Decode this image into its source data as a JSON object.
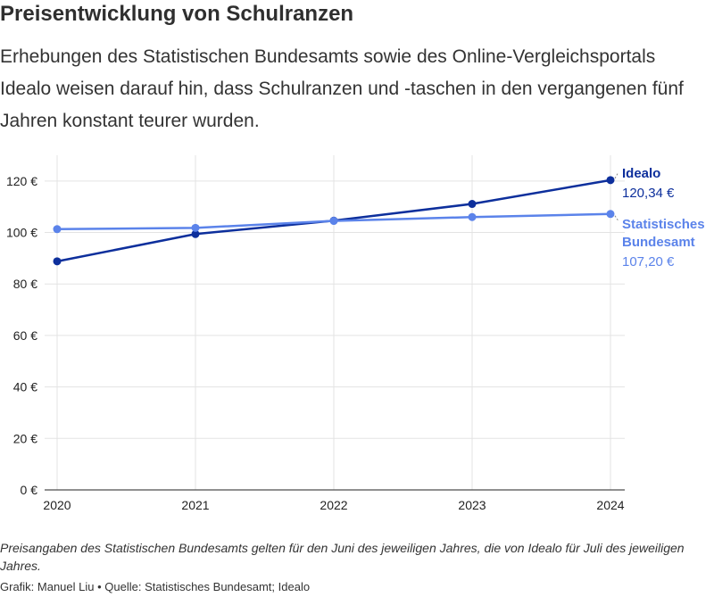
{
  "header": {
    "title": "Preisentwicklung von Schulranzen",
    "subtitle": "Erhebungen des Statistischen Bundesamts sowie des Online-Vergleichsportals Idealo weisen darauf hin, dass Schulranzen und -taschen in den vergangenen fünf Jahren konstant teurer wurden."
  },
  "chart_data": {
    "type": "line",
    "x": [
      "2020",
      "2021",
      "2022",
      "2023",
      "2024"
    ],
    "ylim": [
      0,
      130
    ],
    "yticks": [
      0,
      20,
      40,
      60,
      80,
      100,
      120
    ],
    "ytick_labels": [
      "0 €",
      "20 €",
      "40 €",
      "60 €",
      "80 €",
      "100 €",
      "120 €"
    ],
    "grid": true,
    "series": [
      {
        "name": "Idealo",
        "values": [
          88.8,
          99.4,
          104.6,
          111.1,
          120.34
        ],
        "color": "#0d2f9c",
        "end_label": "120,34 €",
        "name_lines": [
          "Idealo"
        ]
      },
      {
        "name": "Statistisches Bundesamt",
        "values": [
          101.3,
          101.8,
          104.5,
          106.0,
          107.2
        ],
        "color": "#5b83ea",
        "end_label": "107,20 €",
        "name_lines": [
          "Statistisches",
          "Bundesamt"
        ]
      }
    ]
  },
  "footer": {
    "note": "Preisangaben des Statistischen Bundesamts gelten für den Juni des jeweiligen Jahres, die von Idealo für Juli des jeweiligen Jahres.",
    "source": "Grafik: Manuel Liu • Quelle: Statistisches Bundesamt; Idealo"
  }
}
